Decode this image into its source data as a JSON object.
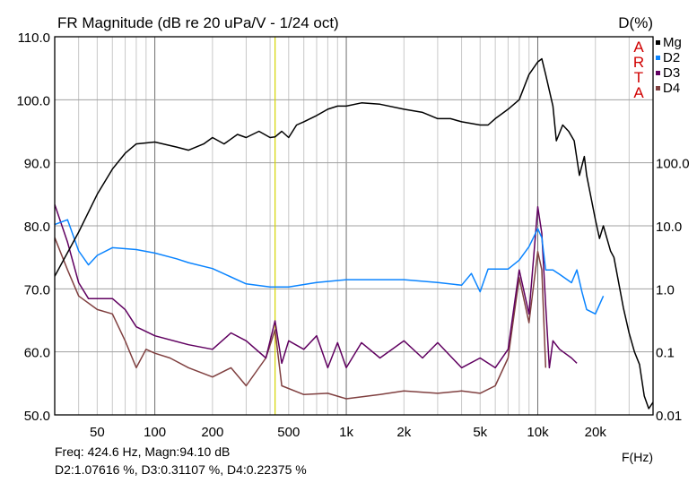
{
  "chart_data": {
    "type": "line",
    "title": "FR Magnitude (dB re 20 uPa/V - 1/24 oct)",
    "right_axis_label": "D(%)",
    "xlabel": "F(Hz)",
    "x_scale": "log",
    "xlim": [
      30,
      40000
    ],
    "ylim": [
      50,
      110
    ],
    "y2lim": [
      0.01,
      1000
    ],
    "y2_scale": "log",
    "grid": true,
    "legend_placement": "top-right",
    "watermark": [
      "A",
      "R",
      "T",
      "A"
    ],
    "y_ticks": [
      110,
      100,
      90,
      80,
      70,
      60,
      50
    ],
    "y_tick_labels": [
      "110.0",
      "100.0",
      "90.0",
      "80.0",
      "70.0",
      "60.0",
      "50.0"
    ],
    "y2_ticks": [
      100,
      10,
      1,
      0.1,
      0.01
    ],
    "y2_tick_labels": [
      "100.0",
      "10.0",
      "1.0",
      "0.1",
      "0.01"
    ],
    "x_ticks": [
      50,
      100,
      200,
      500,
      1000,
      2000,
      5000,
      10000,
      20000
    ],
    "x_tick_labels": [
      "50",
      "100",
      "200",
      "500",
      "1k",
      "2k",
      "5k",
      "10k",
      "20k"
    ],
    "cursor_freq": 424.6,
    "cursor_color": "#d4d400",
    "series": [
      {
        "name": "Mg",
        "axis": "left",
        "color": "#000000",
        "points": [
          [
            30,
            72
          ],
          [
            40,
            79
          ],
          [
            50,
            85
          ],
          [
            60,
            89
          ],
          [
            70,
            91.5
          ],
          [
            80,
            93
          ],
          [
            100,
            93.3
          ],
          [
            130,
            92.5
          ],
          [
            150,
            92
          ],
          [
            180,
            93
          ],
          [
            200,
            94
          ],
          [
            230,
            93
          ],
          [
            270,
            94.5
          ],
          [
            300,
            94
          ],
          [
            350,
            95
          ],
          [
            400,
            94
          ],
          [
            424.6,
            94.1
          ],
          [
            460,
            95
          ],
          [
            500,
            94
          ],
          [
            550,
            96
          ],
          [
            600,
            96.5
          ],
          [
            700,
            97.5
          ],
          [
            800,
            98.5
          ],
          [
            900,
            99
          ],
          [
            1000,
            99
          ],
          [
            1200,
            99.5
          ],
          [
            1500,
            99.3
          ],
          [
            2000,
            98.5
          ],
          [
            2500,
            98
          ],
          [
            3000,
            97
          ],
          [
            3500,
            97
          ],
          [
            4000,
            96.5
          ],
          [
            5000,
            96
          ],
          [
            5500,
            96
          ],
          [
            6000,
            97
          ],
          [
            7000,
            98.5
          ],
          [
            8000,
            100
          ],
          [
            9000,
            104
          ],
          [
            10000,
            106
          ],
          [
            10500,
            106.5
          ],
          [
            11000,
            104
          ],
          [
            12000,
            99
          ],
          [
            12500,
            93.5
          ],
          [
            13500,
            96
          ],
          [
            14500,
            95
          ],
          [
            15500,
            93.5
          ],
          [
            16500,
            88
          ],
          [
            17500,
            91
          ],
          [
            18000,
            88
          ],
          [
            20000,
            81
          ],
          [
            21000,
            78
          ],
          [
            22000,
            80
          ],
          [
            24000,
            76
          ],
          [
            25000,
            75
          ],
          [
            28000,
            67
          ],
          [
            30000,
            63
          ],
          [
            32000,
            60
          ],
          [
            34000,
            58
          ],
          [
            36000,
            53
          ],
          [
            38000,
            51
          ],
          [
            40000,
            52
          ]
        ]
      },
      {
        "name": "D2",
        "axis": "right",
        "color": "#0a84ff",
        "points": [
          [
            30,
            10.5
          ],
          [
            35,
            12.5
          ],
          [
            40,
            4
          ],
          [
            45,
            2.4
          ],
          [
            50,
            3.4
          ],
          [
            60,
            4.5
          ],
          [
            80,
            4.2
          ],
          [
            100,
            3.7
          ],
          [
            130,
            3.0
          ],
          [
            150,
            2.6
          ],
          [
            200,
            2.1
          ],
          [
            300,
            1.2
          ],
          [
            400,
            1.07
          ],
          [
            500,
            1.07
          ],
          [
            700,
            1.26
          ],
          [
            1000,
            1.4
          ],
          [
            2000,
            1.4
          ],
          [
            3000,
            1.26
          ],
          [
            4000,
            1.14
          ],
          [
            4500,
            1.75
          ],
          [
            5000,
            0.9
          ],
          [
            5500,
            2.06
          ],
          [
            7000,
            2.06
          ],
          [
            8000,
            2.85
          ],
          [
            9000,
            4.66
          ],
          [
            10000,
            9
          ],
          [
            10500,
            6.5
          ],
          [
            11000,
            2
          ],
          [
            12000,
            2
          ],
          [
            13000,
            1.7
          ],
          [
            15000,
            1.25
          ],
          [
            16000,
            2
          ],
          [
            17000,
            0.9
          ],
          [
            18000,
            0.47
          ],
          [
            20000,
            0.4
          ],
          [
            22000,
            0.77
          ]
        ]
      },
      {
        "name": "D3",
        "axis": "right",
        "color": "#600060",
        "points": [
          [
            30,
            21.8
          ],
          [
            35,
            5.5
          ],
          [
            40,
            1.25
          ],
          [
            45,
            0.7
          ],
          [
            60,
            0.7
          ],
          [
            70,
            0.47
          ],
          [
            80,
            0.25
          ],
          [
            100,
            0.18
          ],
          [
            150,
            0.13
          ],
          [
            200,
            0.11
          ],
          [
            250,
            0.2
          ],
          [
            300,
            0.15
          ],
          [
            380,
            0.08
          ],
          [
            424.6,
            0.311
          ],
          [
            460,
            0.066
          ],
          [
            500,
            0.15
          ],
          [
            600,
            0.11
          ],
          [
            700,
            0.18
          ],
          [
            800,
            0.056
          ],
          [
            900,
            0.14
          ],
          [
            1000,
            0.056
          ],
          [
            1200,
            0.14
          ],
          [
            1500,
            0.08
          ],
          [
            2000,
            0.15
          ],
          [
            2500,
            0.08
          ],
          [
            3000,
            0.14
          ],
          [
            4000,
            0.056
          ],
          [
            5000,
            0.08
          ],
          [
            6000,
            0.056
          ],
          [
            7000,
            0.11
          ],
          [
            8000,
            2
          ],
          [
            9000,
            0.4
          ],
          [
            10000,
            20
          ],
          [
            10500,
            7.6
          ],
          [
            11000,
            0.55
          ],
          [
            11500,
            0.056
          ],
          [
            12000,
            0.15
          ],
          [
            13000,
            0.11
          ],
          [
            15000,
            0.08
          ],
          [
            16000,
            0.066
          ]
        ]
      },
      {
        "name": "D4",
        "axis": "right",
        "color": "#804040",
        "points": [
          [
            30,
            6.5
          ],
          [
            35,
            2
          ],
          [
            40,
            0.77
          ],
          [
            50,
            0.47
          ],
          [
            60,
            0.4
          ],
          [
            70,
            0.15
          ],
          [
            80,
            0.056
          ],
          [
            90,
            0.11
          ],
          [
            100,
            0.095
          ],
          [
            120,
            0.08
          ],
          [
            150,
            0.056
          ],
          [
            200,
            0.04
          ],
          [
            250,
            0.056
          ],
          [
            300,
            0.029
          ],
          [
            380,
            0.08
          ],
          [
            424.6,
            0.224
          ],
          [
            460,
            0.029
          ],
          [
            600,
            0.021
          ],
          [
            800,
            0.022
          ],
          [
            1000,
            0.018
          ],
          [
            1500,
            0.021
          ],
          [
            2000,
            0.024
          ],
          [
            3000,
            0.022
          ],
          [
            4000,
            0.024
          ],
          [
            5000,
            0.022
          ],
          [
            6000,
            0.029
          ],
          [
            7000,
            0.08
          ],
          [
            8000,
            1.5
          ],
          [
            9000,
            0.29
          ],
          [
            10000,
            3.9
          ],
          [
            10500,
            2
          ],
          [
            11000,
            0.056
          ]
        ]
      }
    ]
  },
  "readout": {
    "line1": "Freq: 424.6 Hz, Magn:94.10 dB",
    "line2": "D2:1.07616 %, D3:0.31107 %, D4:0.22375 %"
  }
}
